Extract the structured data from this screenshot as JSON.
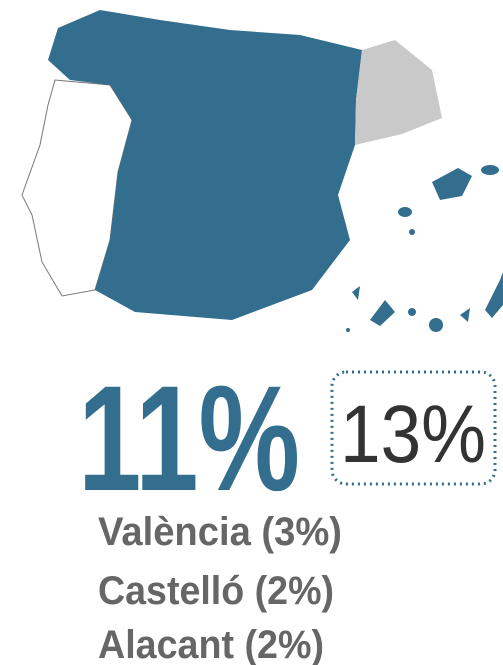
{
  "main_value": "11%",
  "boxed_value": "13%",
  "items": [
    "València (3%)",
    "Castelló (2%)",
    "Alacant (2%)"
  ]
}
